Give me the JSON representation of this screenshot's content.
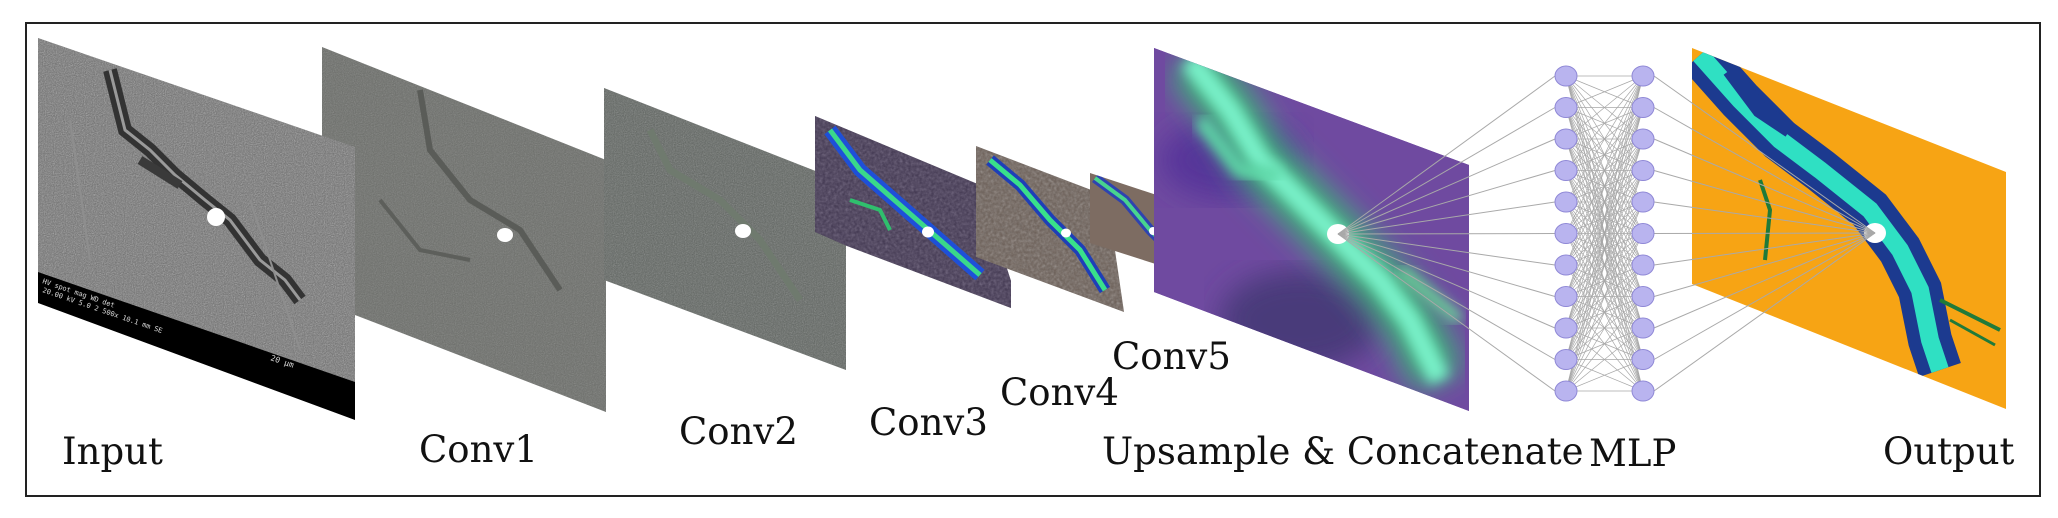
{
  "diagram": {
    "labels": {
      "input": "Input",
      "conv1": "Conv1",
      "conv2": "Conv2",
      "conv3": "Conv3",
      "conv4": "Conv4",
      "conv5": "Conv5",
      "upsample": "Upsample & Concatenate",
      "mlp": "MLP",
      "output": "Output"
    },
    "input_overlay": {
      "scale_text": "20 µm",
      "meta_row1": "HV    spot   mag   WD   det",
      "meta_row2": "20.00 kV  5.0  2 500x  10.1 mm  SE",
      "meta_row3": "20 μm"
    },
    "mlp_nodes_per_layer": 11,
    "colors": {
      "frame": "#222222",
      "mlp_node_fill": "#b9b4ef",
      "mlp_node_stroke": "#8f88d6",
      "output_background": "#f7a414",
      "output_crack_dark": "#1c3a8f",
      "output_crack_light": "#2fe0c3",
      "upsample_purple": "#6a3f9c",
      "upsample_green": "#5fd8a8"
    }
  }
}
